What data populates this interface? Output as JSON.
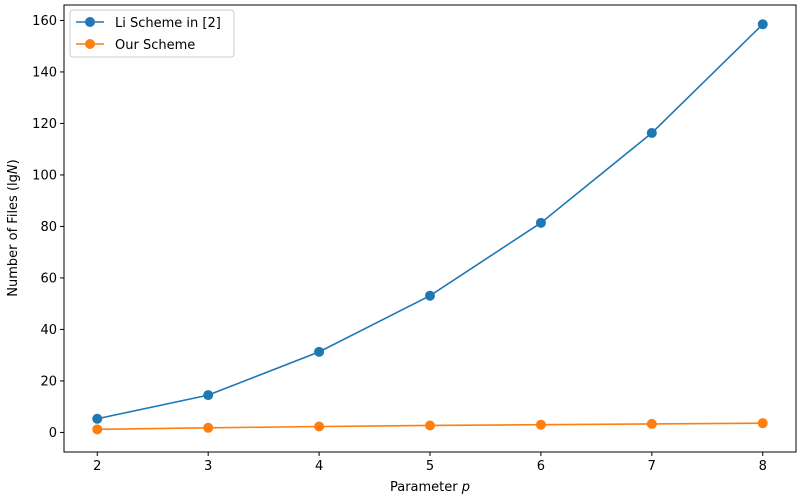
{
  "chart_data": {
    "type": "line",
    "title": "",
    "xlabel_prefix": "Parameter ",
    "xlabel_var": "p",
    "ylabel_prefix": "Number of Files (lg",
    "ylabel_var": "N",
    "ylabel_suffix": ")",
    "x": [
      2,
      3,
      4,
      5,
      6,
      7,
      8
    ],
    "xlim": [
      1.7,
      8.3
    ],
    "ylim": [
      -7.6,
      166
    ],
    "xticks": [
      2,
      3,
      4,
      5,
      6,
      7,
      8
    ],
    "yticks": [
      0,
      20,
      40,
      60,
      80,
      100,
      120,
      140,
      160
    ],
    "grid": false,
    "legend_position": "top-left",
    "series": [
      {
        "name": "Li Scheme in [2]",
        "color": "#1f77b4",
        "marker": "circle",
        "values": [
          5.3,
          14.5,
          31.3,
          53.1,
          81.4,
          116.3,
          158.5
        ]
      },
      {
        "name": "Our Scheme",
        "color": "#ff7f0e",
        "marker": "circle",
        "values": [
          1.2,
          1.8,
          2.3,
          2.7,
          3.0,
          3.3,
          3.6
        ]
      }
    ]
  }
}
